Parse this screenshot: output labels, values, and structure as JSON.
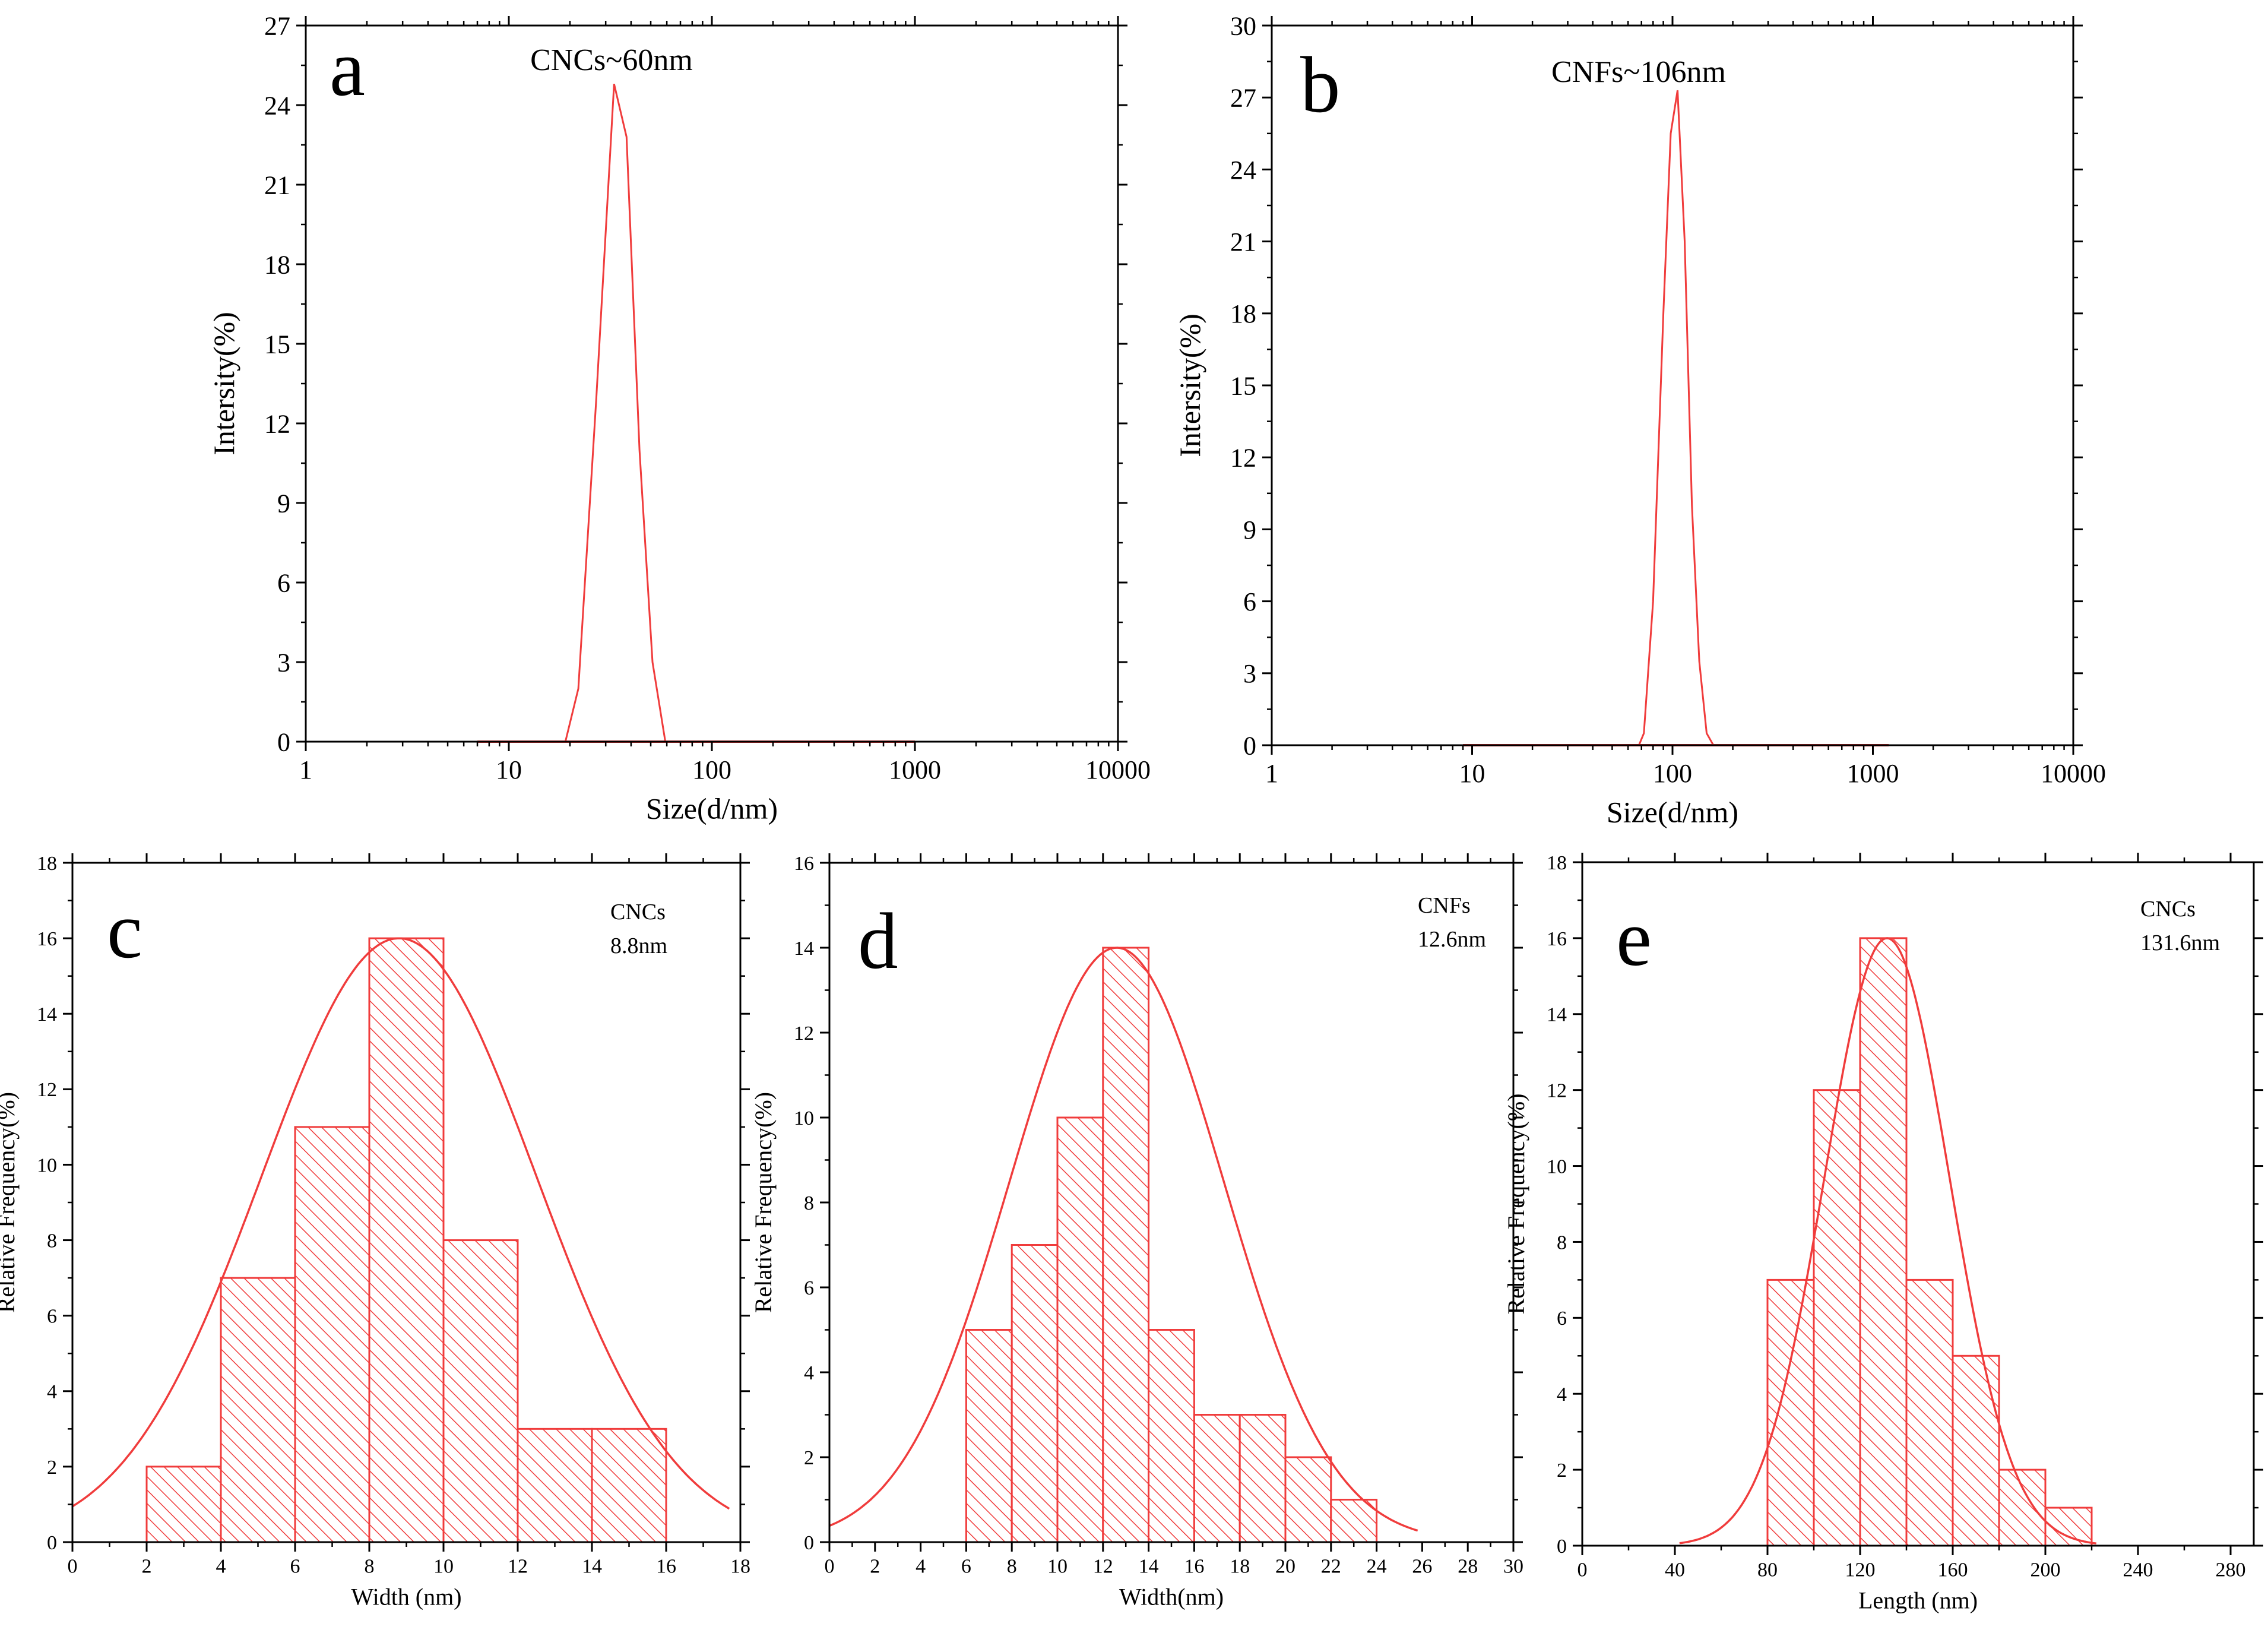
{
  "chart_data": [
    {
      "panel": "a",
      "type": "line",
      "xscale": "log",
      "xlim": [
        1,
        10000
      ],
      "ylim": [
        0,
        27
      ],
      "xticks": [
        1,
        10,
        100,
        1000,
        10000
      ],
      "xtick_labels": [
        "1",
        "10",
        "100",
        "1000",
        "10000"
      ],
      "yticks": [
        0,
        3,
        6,
        9,
        12,
        15,
        18,
        21,
        24,
        27
      ],
      "ytick_labels": [
        "0",
        "3",
        "6",
        "9",
        "12",
        "15",
        "18",
        "21",
        "24",
        "27"
      ],
      "xlabel": "Size(d/nm)",
      "ylabel": "Intersity(%)",
      "annotation": "CNCs~60nm",
      "color": "#f03c3c",
      "series": [
        {
          "name": "CNCs",
          "x": [
            7,
            10,
            15,
            19,
            22,
            27,
            33,
            38,
            44,
            51,
            59,
            61,
            100,
            300,
            1000
          ],
          "y": [
            0,
            0,
            0,
            0,
            2,
            13,
            24.8,
            22.8,
            11,
            3,
            0,
            0,
            0,
            0,
            0
          ]
        }
      ]
    },
    {
      "panel": "b",
      "type": "line",
      "xscale": "log",
      "xlim": [
        1,
        10000
      ],
      "ylim": [
        0,
        30
      ],
      "xticks": [
        1,
        10,
        100,
        1000,
        10000
      ],
      "xtick_labels": [
        "1",
        "10",
        "100",
        "1000",
        "10000"
      ],
      "yticks": [
        0,
        3,
        6,
        9,
        12,
        15,
        18,
        21,
        24,
        27,
        30
      ],
      "ytick_labels": [
        "0",
        "3",
        "6",
        "9",
        "12",
        "15",
        "18",
        "21",
        "24",
        "27",
        "30"
      ],
      "xlabel": "Size(d/nm)",
      "ylabel": "Intersity(%)",
      "annotation": "CNFs~106nm",
      "color": "#f03c3c",
      "series": [
        {
          "name": "CNFs",
          "x": [
            9,
            30,
            68,
            72,
            80,
            90,
            98,
            106,
            115,
            125,
            136,
            148,
            160,
            300,
            1200
          ],
          "y": [
            0,
            0,
            0,
            0.5,
            6,
            18,
            25.5,
            27.3,
            21,
            10,
            3.5,
            0.5,
            0,
            0,
            0
          ]
        }
      ]
    },
    {
      "panel": "c",
      "type": "bar",
      "xlim": [
        0,
        18
      ],
      "ylim": [
        0,
        18
      ],
      "xticks": [
        0,
        2,
        4,
        6,
        8,
        10,
        12,
        14,
        16,
        18
      ],
      "yticks": [
        0,
        2,
        4,
        6,
        8,
        10,
        12,
        14,
        16,
        18
      ],
      "xlabel": "Width (nm)",
      "ylabel": "Relative Frequency(%)",
      "annotation": [
        "CNCs",
        "8.8nm"
      ],
      "color": "#f03c3c",
      "bin_edges": [
        2,
        4,
        6,
        8,
        10,
        12,
        14,
        16
      ],
      "values": [
        2,
        7,
        11,
        16,
        8,
        3,
        3
      ],
      "fit": {
        "mean": 8.8,
        "sd": 3.7,
        "peak": 16,
        "x_range": [
          0,
          17.7
        ]
      }
    },
    {
      "panel": "d",
      "type": "bar",
      "xlim": [
        0,
        30
      ],
      "ylim": [
        0,
        16
      ],
      "xticks": [
        0,
        2,
        4,
        6,
        8,
        10,
        12,
        14,
        16,
        18,
        20,
        22,
        24,
        26,
        28,
        30
      ],
      "yticks": [
        0,
        2,
        4,
        6,
        8,
        10,
        12,
        14,
        16
      ],
      "xlabel": "Width(nm)",
      "ylabel": "Relative Frequency(%)",
      "annotation": [
        "CNFs",
        "12.6nm"
      ],
      "color": "#f03c3c",
      "bin_edges": [
        6,
        8,
        10,
        12,
        14,
        16,
        18,
        20,
        22,
        24
      ],
      "values": [
        5,
        7,
        10,
        14,
        5,
        3,
        3,
        2,
        1
      ],
      "fit": {
        "mean": 12.6,
        "sd": 4.7,
        "peak": 14,
        "x_range": [
          0,
          25.8
        ]
      }
    },
    {
      "panel": "e",
      "type": "bar",
      "xlim": [
        0,
        290
      ],
      "ylim": [
        0,
        18
      ],
      "xticks": [
        0,
        40,
        80,
        120,
        160,
        200,
        240,
        280
      ],
      "yticks": [
        0,
        2,
        4,
        6,
        8,
        10,
        12,
        14,
        16,
        18
      ],
      "xlabel": "Length (nm)",
      "ylabel": "Relative Frequency(%)",
      "annotation": [
        "CNCs",
        "131.6nm"
      ],
      "color": "#f03c3c",
      "bin_edges": [
        80,
        100,
        120,
        140,
        160,
        180,
        200,
        220
      ],
      "values": [
        7,
        12,
        16,
        7,
        5,
        2,
        1
      ],
      "fit": {
        "mean": 131.6,
        "sd": 27,
        "peak": 16,
        "x_range": [
          42,
          222
        ]
      }
    }
  ]
}
